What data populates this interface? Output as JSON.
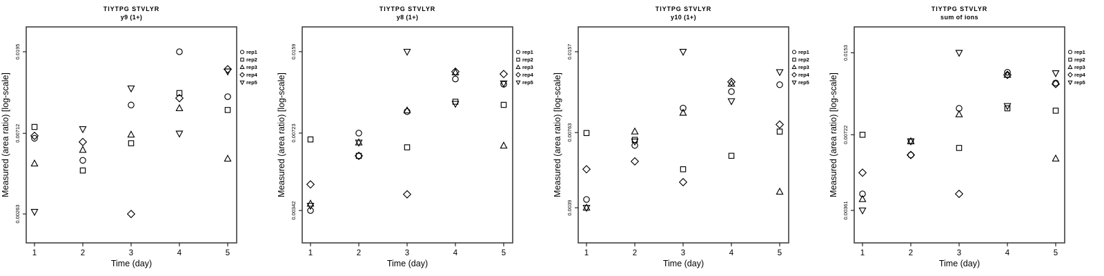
{
  "figure": {
    "bg": "#ffffff",
    "fg": "#000000",
    "box_color": "#4a4a4a",
    "marker_color": "#000000"
  },
  "chart_data": [
    {
      "type": "scatter",
      "id": "y9",
      "title": "TIYTPG STVLYR",
      "subtitle": "y9 (1+)",
      "xlabel": "Time (day)",
      "ylabel": "Measured (area ratio) [log-scale]",
      "yscale": "log",
      "x": [
        1,
        2,
        3,
        4,
        5
      ],
      "xtick_labels": [
        "1",
        "2",
        "3",
        "4",
        "5"
      ],
      "yticks": [
        0.00263,
        0.00712,
        0.0195
      ],
      "ytick_labels": [
        "0.00263",
        "0.00712",
        "0.0195"
      ],
      "ylim": [
        0.00184,
        0.0265
      ],
      "legend_position": "right-top-outside",
      "series": [
        {
          "name": "rep1",
          "marker": "circle",
          "values": [
            0.0067,
            0.0051,
            0.0101,
            0.0195,
            0.0112
          ]
        },
        {
          "name": "rep2",
          "marker": "square",
          "values": [
            0.0077,
            0.0045,
            0.0063,
            0.0117,
            0.0095
          ]
        },
        {
          "name": "rep3",
          "marker": "triangle-up",
          "values": [
            0.0049,
            0.0058,
            0.007,
            0.0097,
            0.0052
          ]
        },
        {
          "name": "rep4",
          "marker": "diamond",
          "values": [
            0.0069,
            0.0064,
            0.00263,
            0.011,
            0.0157
          ]
        },
        {
          "name": "rep5",
          "marker": "triangle-down",
          "values": [
            0.0027,
            0.0075,
            0.0124,
            0.0071,
            0.0153
          ]
        }
      ]
    },
    {
      "type": "scatter",
      "id": "y8",
      "title": "TIYTPG STVLYR",
      "subtitle": "y8 (1+)",
      "xlabel": "Time (day)",
      "ylabel": "Measured (area ratio) [log-scale]",
      "yscale": "log",
      "x": [
        1,
        2,
        3,
        4,
        5
      ],
      "xtick_labels": [
        "1",
        "2",
        "3",
        "4",
        "5"
      ],
      "yticks": [
        0.00342,
        0.00723,
        0.0159
      ],
      "ytick_labels": [
        "0.00342",
        "0.00723",
        "0.0159"
      ],
      "ylim": [
        0.0025,
        0.0202
      ],
      "legend_position": "right-top-outside",
      "series": [
        {
          "name": "rep1",
          "marker": "circle",
          "values": [
            0.00342,
            0.00723,
            0.0089,
            0.0122,
            0.0116
          ]
        },
        {
          "name": "rep2",
          "marker": "square",
          "values": [
            0.0068,
            0.0058,
            0.0063,
            0.0098,
            0.0095
          ]
        },
        {
          "name": "rep3",
          "marker": "triangle-up",
          "values": [
            0.00365,
            0.0066,
            0.009,
            0.013,
            0.0064
          ]
        },
        {
          "name": "rep4",
          "marker": "diamond",
          "values": [
            0.0044,
            0.0058,
            0.004,
            0.0131,
            0.0128
          ]
        },
        {
          "name": "rep5",
          "marker": "triangle-down",
          "values": [
            0.00358,
            0.0066,
            0.0159,
            0.0096,
            0.0117
          ]
        }
      ]
    },
    {
      "type": "scatter",
      "id": "y10",
      "title": "TIYTPG STVLYR",
      "subtitle": "y10 (1+)",
      "xlabel": "Time (day)",
      "ylabel": "Measured (area ratio) [log-scale]",
      "yscale": "log",
      "x": [
        1,
        2,
        3,
        4,
        5
      ],
      "xtick_labels": [
        "1",
        "2",
        "3",
        "4",
        "5"
      ],
      "yticks": [
        0.0039,
        0.00763,
        0.0157
      ],
      "ytick_labels": [
        "0.0039",
        "0.00763",
        "0.0157"
      ],
      "ylim": [
        0.00285,
        0.0196
      ],
      "legend_position": "right-top-outside",
      "series": [
        {
          "name": "rep1",
          "marker": "circle",
          "values": [
            0.0042,
            0.0068,
            0.0095,
            0.011,
            0.0117
          ]
        },
        {
          "name": "rep2",
          "marker": "square",
          "values": [
            0.0076,
            0.00715,
            0.0055,
            0.0062,
            0.0077
          ]
        },
        {
          "name": "rep3",
          "marker": "triangle-up",
          "values": [
            0.0039,
            0.0077,
            0.0091,
            0.0118,
            0.0045
          ]
        },
        {
          "name": "rep4",
          "marker": "diamond",
          "values": [
            0.0055,
            0.0059,
            0.0049,
            0.012,
            0.0082
          ]
        },
        {
          "name": "rep5",
          "marker": "triangle-down",
          "values": [
            0.0039,
            0.00705,
            0.0157,
            0.0101,
            0.0131
          ]
        }
      ]
    },
    {
      "type": "scatter",
      "id": "sum",
      "title": "TIYTPG STVLYR",
      "subtitle": "sum of ions",
      "xlabel": "Time (day)",
      "ylabel": "Measured (area ratio) [log-scale]",
      "yscale": "log",
      "x": [
        1,
        2,
        3,
        4,
        5
      ],
      "xtick_labels": [
        "1",
        "2",
        "3",
        "4",
        "5"
      ],
      "yticks": [
        0.00361,
        0.00722,
        0.0153
      ],
      "ytick_labels": [
        "0.00361",
        "0.00722",
        "0.0153"
      ],
      "ylim": [
        0.00268,
        0.0194
      ],
      "legend_position": "right-top-outside",
      "series": [
        {
          "name": "rep1",
          "marker": "circle",
          "values": [
            0.0042,
            0.006,
            0.0092,
            0.0128,
            0.0116
          ]
        },
        {
          "name": "rep2",
          "marker": "square",
          "values": [
            0.00722,
            0.0068,
            0.0064,
            0.0092,
            0.009
          ]
        },
        {
          "name": "rep3",
          "marker": "triangle-up",
          "values": [
            0.004,
            0.0068,
            0.0087,
            0.0125,
            0.0058
          ]
        },
        {
          "name": "rep4",
          "marker": "diamond",
          "values": [
            0.0051,
            0.006,
            0.0042,
            0.0125,
            0.0115
          ]
        },
        {
          "name": "rep5",
          "marker": "triangle-down",
          "values": [
            0.00361,
            0.0068,
            0.0153,
            0.0094,
            0.0127
          ]
        }
      ]
    }
  ]
}
